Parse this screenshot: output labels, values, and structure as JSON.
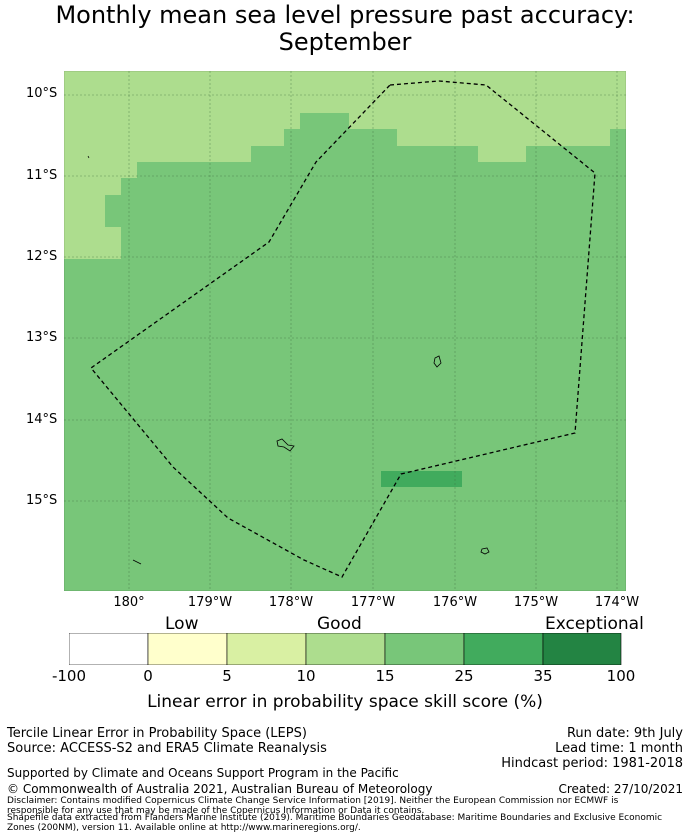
{
  "title_line1": "Monthly mean sea level pressure past accuracy:",
  "title_line2": "September",
  "lat_labels": [
    "10°S",
    "11°S",
    "12°S",
    "13°S",
    "14°S",
    "15°S"
  ],
  "lon_labels": [
    "180°",
    "179°W",
    "178°W",
    "177°W",
    "176°W",
    "175°W",
    "174°W"
  ],
  "colorbar": {
    "categories": [
      "Low",
      "Good",
      "Exceptional"
    ],
    "ticks": [
      "-100",
      "0",
      "5",
      "10",
      "15",
      "25",
      "35",
      "100"
    ],
    "colors": [
      "#ffffff",
      "#ffffcc",
      "#d9f0a3",
      "#addd8e",
      "#78c679",
      "#41ab5d",
      "#238443"
    ],
    "label": "Linear error in probability space skill score (%)"
  },
  "map_colors": {
    "good": "#78c679",
    "fair": "#addd8e",
    "high": "#41ab5d"
  },
  "footer": {
    "left1": "Tercile Linear Error in Probability Space (LEPS)",
    "left2": "Source: ACCESS-S2 and ERA5 Climate Reanalysis",
    "right1": "Run date: 9th July",
    "right2": "Lead time: 1 month",
    "right3": "Hindcast period: 1981-2018",
    "support": "Supported by Climate and Oceans Support Program in the Pacific",
    "copyright": "© Commonwealth of Australia 2021, Australian Bureau of Meteorology",
    "created": "Created: 27/10/2021",
    "disclaimer1": "Disclaimer: Contains modified Copernicus Climate Change Service Information [2019]. Neither the European Commission nor ECMWF is",
    "disclaimer2": "responsible for any use that may be made of the Copernicus Information or Data it contains.",
    "disclaimer3": "Shapefile data extracted from Flanders Marine Institute (2019). Maritime Boundaries Geodatabase: Maritime Boundaries and Exclusive Economic",
    "disclaimer4": "Zones (200NM), version 11. Available online at http://www.marineregions.org/."
  }
}
